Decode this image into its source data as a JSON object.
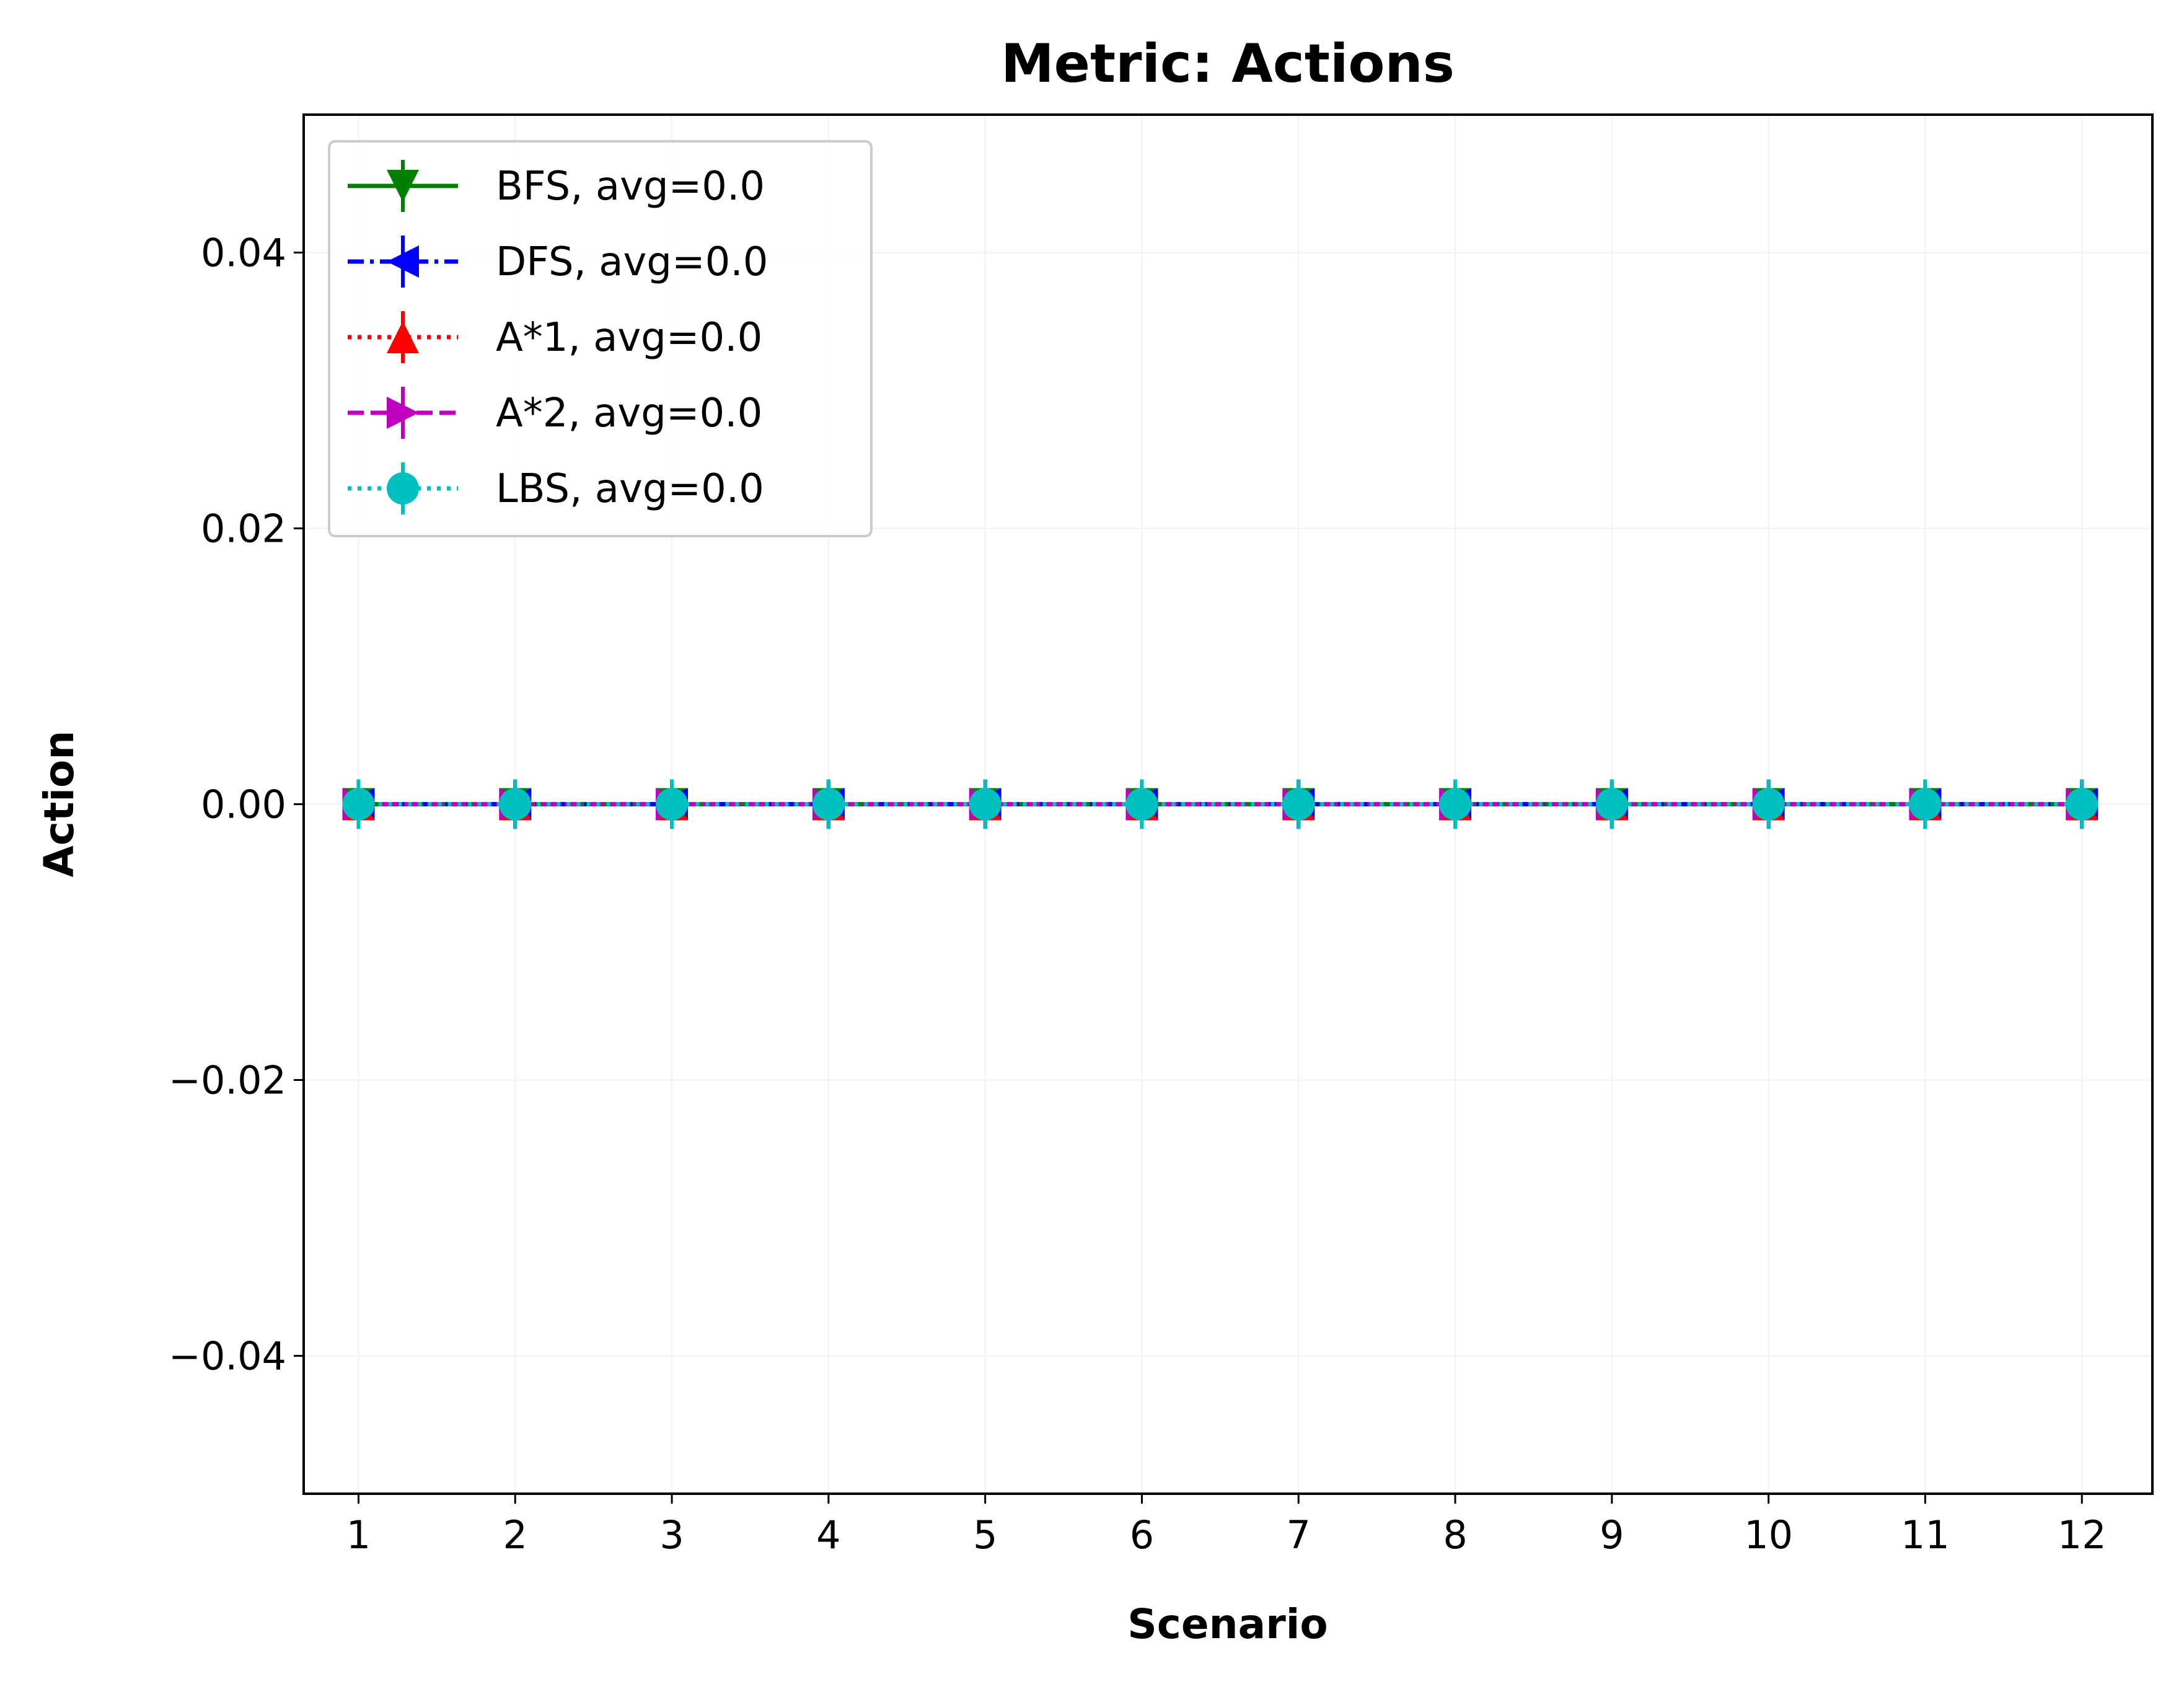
{
  "chart_data": {
    "type": "line",
    "title": "Metric: Actions",
    "xlabel": "Scenario",
    "ylabel": "Action",
    "x": [
      1,
      2,
      3,
      4,
      5,
      6,
      7,
      8,
      9,
      10,
      11,
      12
    ],
    "x_tick_labels": [
      "1",
      "2",
      "3",
      "4",
      "5",
      "6",
      "7",
      "8",
      "9",
      "10",
      "11",
      "12"
    ],
    "xlim": [
      0.65,
      12.45
    ],
    "ylim": [
      -0.05,
      0.05
    ],
    "y_ticks": [
      -0.04,
      -0.02,
      0.0,
      0.02,
      0.04
    ],
    "y_tick_labels": [
      "−0.04",
      "−0.02",
      "0.00",
      "0.02",
      "0.04"
    ],
    "grid": true,
    "legend_position": "top-left",
    "series": [
      {
        "name": "BFS, avg=0.0",
        "values": [
          0,
          0,
          0,
          0,
          0,
          0,
          0,
          0,
          0,
          0,
          0,
          0
        ],
        "color": "#008000",
        "linestyle": "solid",
        "marker": "triangle-down"
      },
      {
        "name": "DFS, avg=0.0",
        "values": [
          0,
          0,
          0,
          0,
          0,
          0,
          0,
          0,
          0,
          0,
          0,
          0
        ],
        "color": "#0000ff",
        "linestyle": "dashdot",
        "marker": "triangle-left"
      },
      {
        "name": "A*1, avg=0.0",
        "values": [
          0,
          0,
          0,
          0,
          0,
          0,
          0,
          0,
          0,
          0,
          0,
          0
        ],
        "color": "#ff0000",
        "linestyle": "dotted",
        "marker": "triangle-up"
      },
      {
        "name": "A*2, avg=0.0",
        "values": [
          0,
          0,
          0,
          0,
          0,
          0,
          0,
          0,
          0,
          0,
          0,
          0
        ],
        "color": "#bf00bf",
        "linestyle": "dashed",
        "marker": "triangle-right"
      },
      {
        "name": "LBS, avg=0.0",
        "values": [
          0,
          0,
          0,
          0,
          0,
          0,
          0,
          0,
          0,
          0,
          0,
          0
        ],
        "color": "#00bfbf",
        "linestyle": "dotted",
        "marker": "circle"
      }
    ]
  }
}
